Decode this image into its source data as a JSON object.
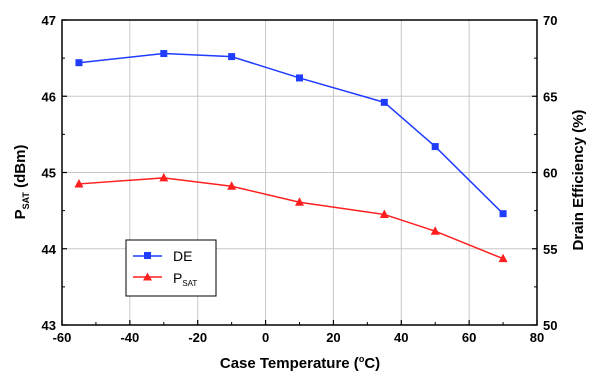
{
  "chart_data": {
    "type": "line",
    "xlabel": {
      "main": "Case Temperature (",
      "sup": "o",
      "tail": "C)"
    },
    "ylabel_left": {
      "main": "P",
      "sub": "SAT",
      "tail": " (dBm)"
    },
    "ylabel_right": "Drain Efficiency (%)",
    "xlim": [
      -60,
      80
    ],
    "ylim_left": [
      43,
      47
    ],
    "ylim_right": [
      50,
      70
    ],
    "x_ticks": [
      "-60",
      "-40",
      "-20",
      "0",
      "20",
      "40",
      "60",
      "80"
    ],
    "y_left_ticks": [
      "43",
      "44",
      "45",
      "46",
      "47"
    ],
    "y_right_ticks": [
      "50",
      "55",
      "60",
      "65",
      "70"
    ],
    "grid": true,
    "legend_position": "lower-left",
    "series": [
      {
        "name": "DE",
        "axis": "right",
        "color": "#1f3cff",
        "marker": "square",
        "x": [
          -55,
          -30,
          -10,
          10,
          35,
          50,
          70
        ],
        "values": [
          67.2,
          67.8,
          67.6,
          66.2,
          64.6,
          61.7,
          57.3
        ]
      },
      {
        "name": "P",
        "name_sub": "SAT",
        "axis": "left",
        "color": "#ff1f1f",
        "marker": "triangle",
        "x": [
          -55,
          -30,
          -10,
          10,
          35,
          50,
          70
        ],
        "values": [
          44.85,
          44.93,
          44.82,
          44.61,
          44.45,
          44.23,
          43.87
        ]
      }
    ]
  }
}
